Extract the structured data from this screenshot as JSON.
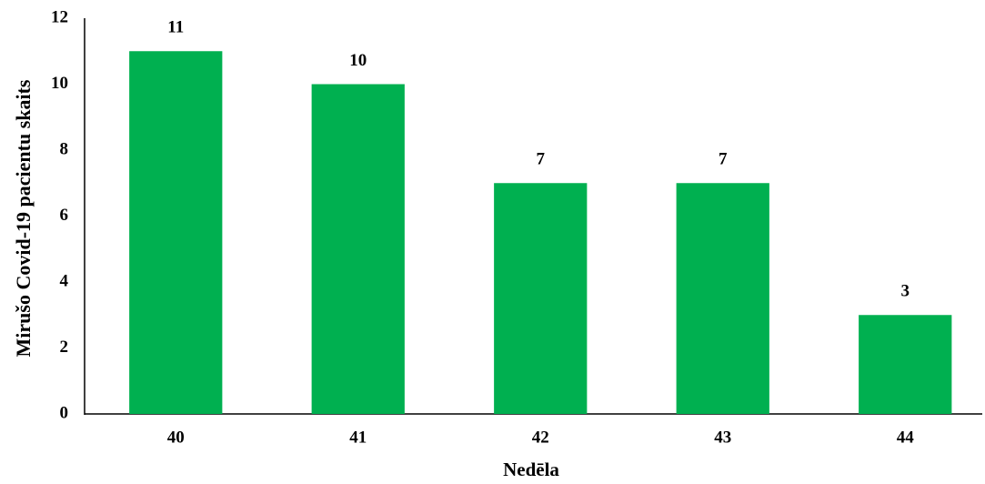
{
  "chart_data": {
    "type": "bar",
    "x_label": "Nedēla",
    "y_label": "Mirušo Covid-19 pacientu skaits",
    "categories": [
      "40",
      "41",
      "42",
      "43",
      "44"
    ],
    "values": [
      11,
      10,
      7,
      7,
      3
    ],
    "color": "#00b050",
    "ylim": [
      0,
      12
    ],
    "yticks": [
      0,
      2,
      4,
      6,
      8,
      10,
      12
    ],
    "grid": false,
    "data_labels": true
  }
}
